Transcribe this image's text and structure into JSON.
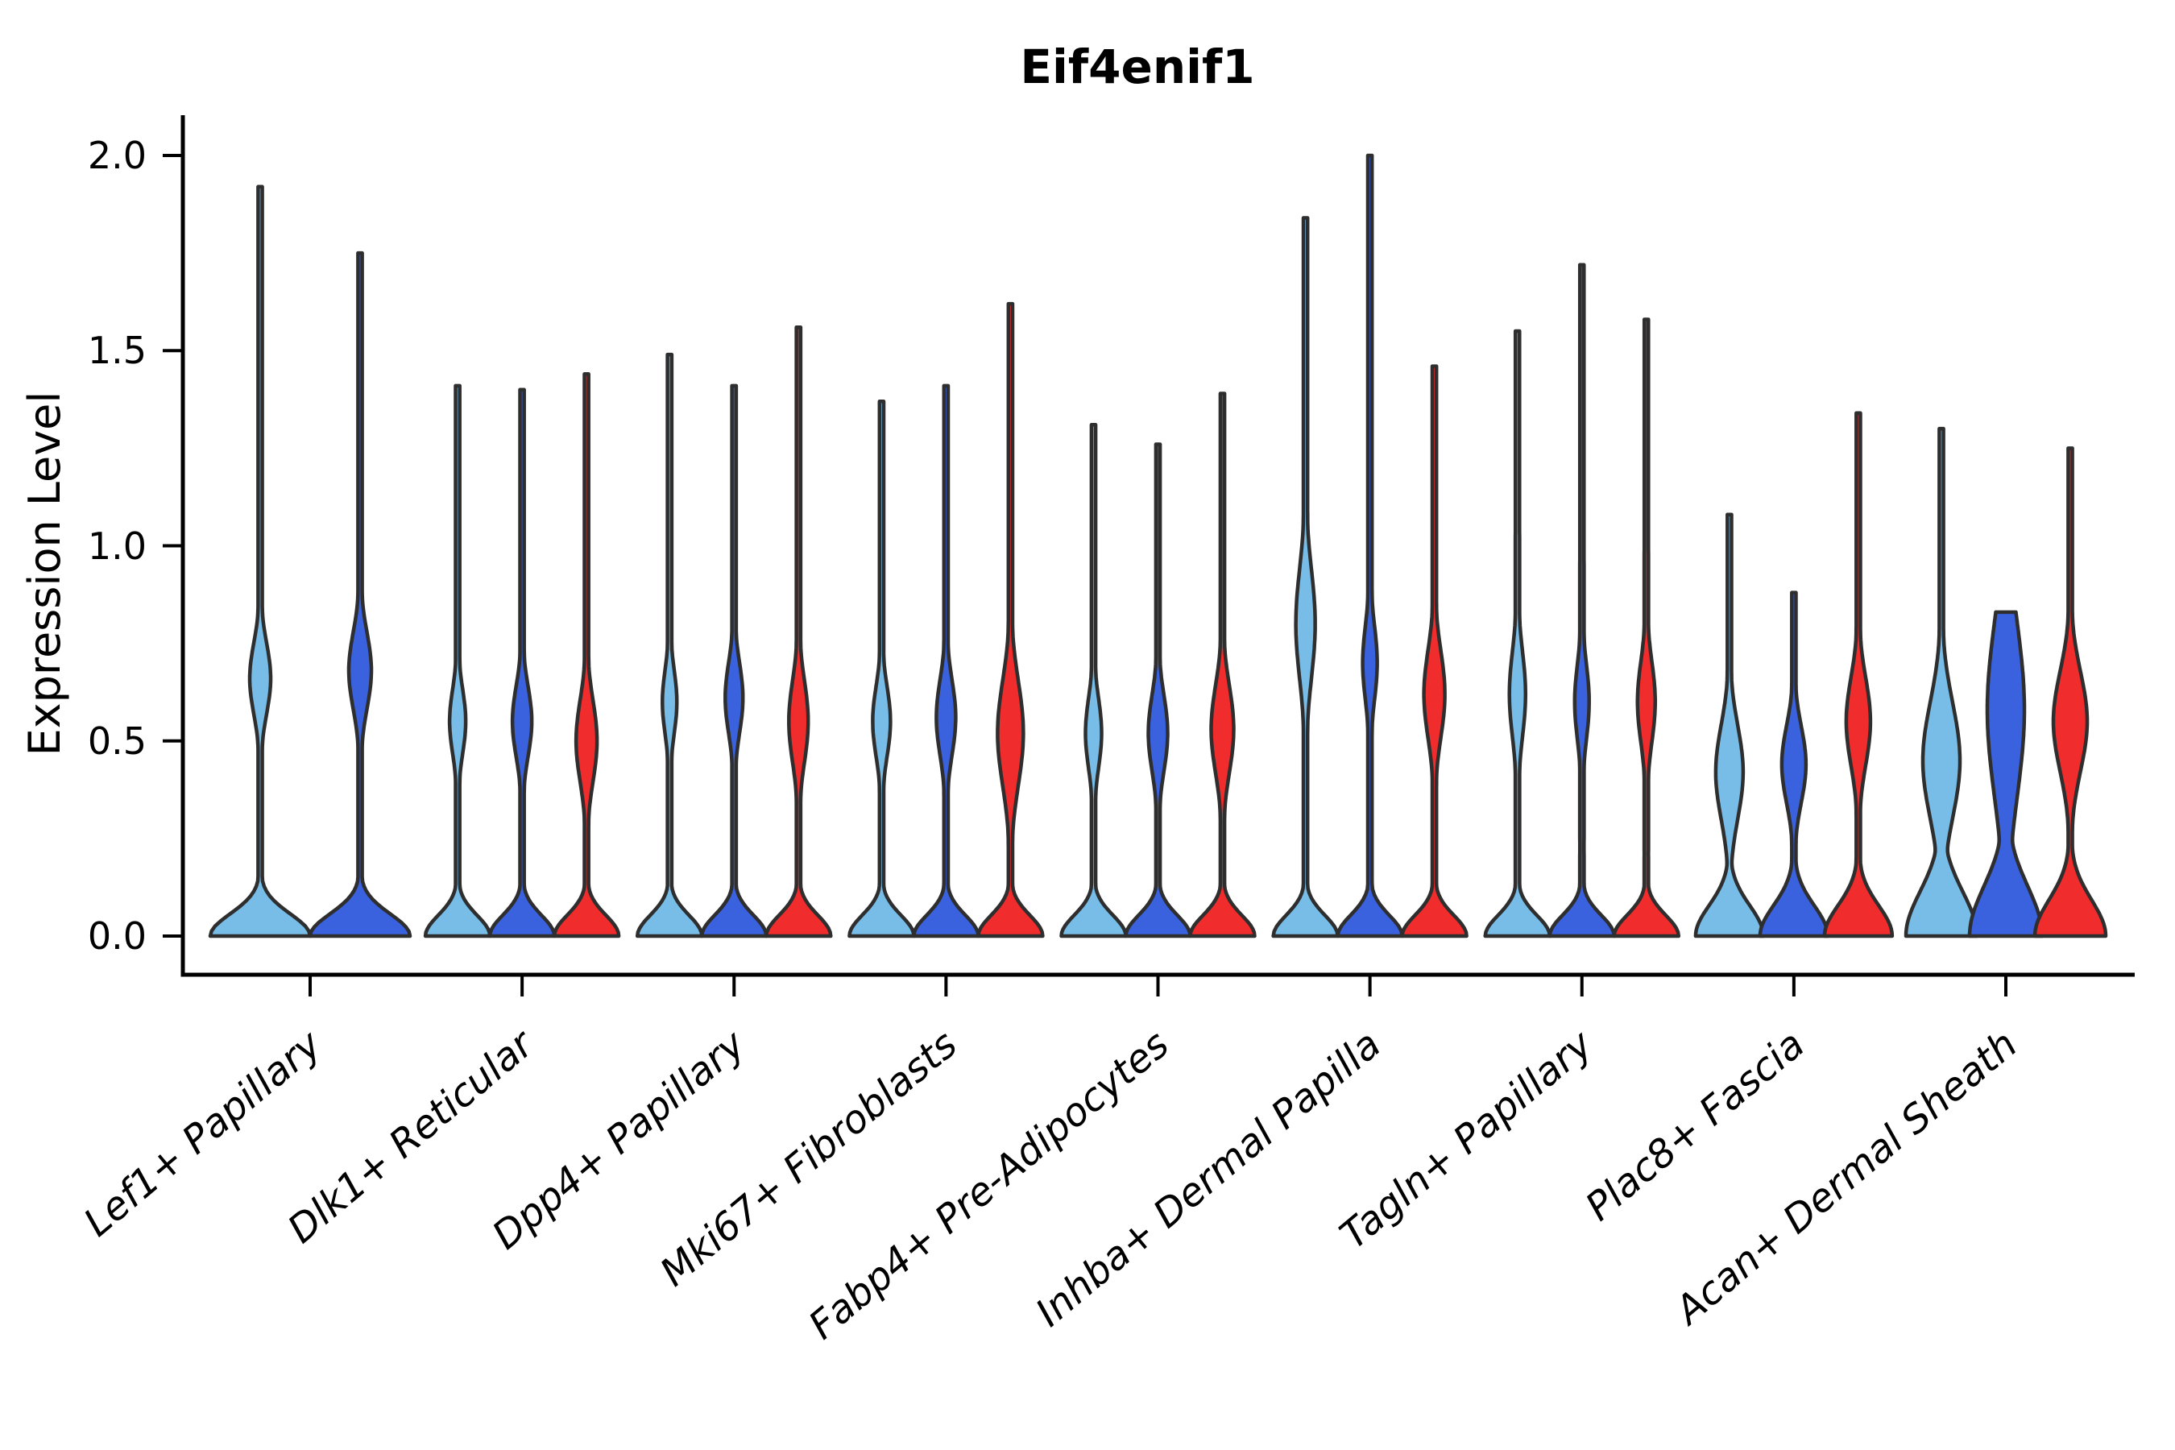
{
  "chart_data": {
    "type": "violin",
    "title": "Eif4enif1",
    "ylabel": "Expression Level",
    "xlabel": "",
    "ylim": [
      0,
      2.05
    ],
    "grid": false,
    "legend": null,
    "yticks": [
      0.0,
      0.5,
      1.0,
      1.5,
      2.0
    ],
    "ytick_labels": [
      "0.0",
      "0.5",
      "1.0",
      "1.5",
      "2.0"
    ],
    "categories": [
      "Lef1+ Papillary",
      "Dlk1+ Reticular",
      "Dpp4+ Papillary",
      "Mki67+ Fibroblasts",
      "Fabp4+ Pre-Adipocytes",
      "Inhba+ Dermal Papilla",
      "Tagln+ Papillary",
      "Plac8+ Fascia",
      "Acan+ Dermal Sheath"
    ],
    "series_colors": {
      "skyblue": "#77BDE8",
      "royalblue": "#3A62DE",
      "red": "#F02C2C",
      "edge": "#2E2E2E",
      "axis": "#000000"
    },
    "groups": [
      {
        "category": "Lef1+ Papillary",
        "violins": [
          {
            "color": "skyblue",
            "max": 1.92,
            "bulge_center": 0.66,
            "bulge_sigma": 0.13,
            "bulge_halfwidth": 13,
            "base_halfwidth": 62,
            "base_sigma": 0.08,
            "flat_top": false
          },
          {
            "color": "royalblue",
            "max": 1.75,
            "bulge_center": 0.68,
            "bulge_sigma": 0.14,
            "bulge_halfwidth": 14,
            "base_halfwidth": 62,
            "base_sigma": 0.08,
            "flat_top": false
          }
        ]
      },
      {
        "category": "Dlk1+ Reticular",
        "violins": [
          {
            "color": "skyblue",
            "max": 1.41,
            "bulge_center": 0.55,
            "bulge_sigma": 0.12,
            "bulge_halfwidth": 10,
            "base_halfwidth": 40,
            "base_sigma": 0.075,
            "flat_top": false
          },
          {
            "color": "royalblue",
            "max": 1.4,
            "bulge_center": 0.55,
            "bulge_sigma": 0.13,
            "bulge_halfwidth": 12,
            "base_halfwidth": 40,
            "base_sigma": 0.075,
            "flat_top": false
          },
          {
            "color": "red",
            "max": 1.44,
            "bulge_center": 0.5,
            "bulge_sigma": 0.15,
            "bulge_halfwidth": 13,
            "base_halfwidth": 40,
            "base_sigma": 0.075,
            "flat_top": false
          }
        ]
      },
      {
        "category": "Dpp4+ Papillary",
        "violins": [
          {
            "color": "skyblue",
            "max": 1.49,
            "bulge_center": 0.6,
            "bulge_sigma": 0.12,
            "bulge_halfwidth": 9,
            "base_halfwidth": 40,
            "base_sigma": 0.075,
            "flat_top": false
          },
          {
            "color": "royalblue",
            "max": 1.41,
            "bulge_center": 0.61,
            "bulge_sigma": 0.13,
            "bulge_halfwidth": 11,
            "base_halfwidth": 40,
            "base_sigma": 0.075,
            "flat_top": false
          },
          {
            "color": "red",
            "max": 1.56,
            "bulge_center": 0.55,
            "bulge_sigma": 0.15,
            "bulge_halfwidth": 12,
            "base_halfwidth": 40,
            "base_sigma": 0.075,
            "flat_top": false
          }
        ]
      },
      {
        "category": "Mki67+ Fibroblasts",
        "violins": [
          {
            "color": "skyblue",
            "max": 1.37,
            "bulge_center": 0.55,
            "bulge_sigma": 0.13,
            "bulge_halfwidth": 11,
            "base_halfwidth": 40,
            "base_sigma": 0.075,
            "flat_top": false
          },
          {
            "color": "royalblue",
            "max": 1.41,
            "bulge_center": 0.56,
            "bulge_sigma": 0.14,
            "bulge_halfwidth": 12,
            "base_halfwidth": 40,
            "base_sigma": 0.075,
            "flat_top": false
          },
          {
            "color": "red",
            "max": 1.62,
            "bulge_center": 0.52,
            "bulge_sigma": 0.19,
            "bulge_halfwidth": 16,
            "base_halfwidth": 40,
            "base_sigma": 0.075,
            "flat_top": false
          }
        ]
      },
      {
        "category": "Fabp4+ Pre-Adipocytes",
        "violins": [
          {
            "color": "skyblue",
            "max": 1.31,
            "bulge_center": 0.52,
            "bulge_sigma": 0.13,
            "bulge_halfwidth": 10,
            "base_halfwidth": 40,
            "base_sigma": 0.075,
            "flat_top": false
          },
          {
            "color": "royalblue",
            "max": 1.26,
            "bulge_center": 0.52,
            "bulge_sigma": 0.14,
            "bulge_halfwidth": 12,
            "base_halfwidth": 40,
            "base_sigma": 0.075,
            "flat_top": false
          },
          {
            "color": "red",
            "max": 1.39,
            "bulge_center": 0.53,
            "bulge_sigma": 0.16,
            "bulge_halfwidth": 14,
            "base_halfwidth": 40,
            "base_sigma": 0.075,
            "flat_top": false
          }
        ]
      },
      {
        "category": "Inhba+ Dermal Papilla",
        "violins": [
          {
            "color": "skyblue",
            "max": 1.84,
            "bulge_center": 0.8,
            "bulge_sigma": 0.2,
            "bulge_halfwidth": 12,
            "base_halfwidth": 40,
            "base_sigma": 0.075,
            "flat_top": false
          },
          {
            "color": "royalblue",
            "max": 2.0,
            "bulge_center": 0.7,
            "bulge_sigma": 0.14,
            "bulge_halfwidth": 9,
            "base_halfwidth": 40,
            "base_sigma": 0.075,
            "flat_top": false
          },
          {
            "color": "red",
            "max": 1.46,
            "bulge_center": 0.62,
            "bulge_sigma": 0.16,
            "bulge_halfwidth": 13,
            "base_halfwidth": 40,
            "base_sigma": 0.075,
            "flat_top": false
          }
        ]
      },
      {
        "category": "Tagln+ Papillary",
        "violins": [
          {
            "color": "skyblue",
            "max": 1.55,
            "bulge_center": 0.62,
            "bulge_sigma": 0.16,
            "bulge_halfwidth": 10,
            "base_halfwidth": 40,
            "base_sigma": 0.075,
            "flat_top": false
          },
          {
            "color": "royalblue",
            "max": 1.72,
            "bulge_center": 0.6,
            "bulge_sigma": 0.14,
            "bulge_halfwidth": 9,
            "base_halfwidth": 40,
            "base_sigma": 0.075,
            "flat_top": false
          },
          {
            "color": "red",
            "max": 1.58,
            "bulge_center": 0.6,
            "bulge_sigma": 0.15,
            "bulge_halfwidth": 11,
            "base_halfwidth": 40,
            "base_sigma": 0.075,
            "flat_top": false
          }
        ]
      },
      {
        "category": "Plac8+ Fascia",
        "violins": [
          {
            "color": "skyblue",
            "max": 1.08,
            "bulge_center": 0.42,
            "bulge_sigma": 0.17,
            "bulge_halfwidth": 17,
            "base_halfwidth": 42,
            "base_sigma": 0.11,
            "flat_top": false
          },
          {
            "color": "royalblue",
            "max": 0.88,
            "bulge_center": 0.44,
            "bulge_sigma": 0.14,
            "bulge_halfwidth": 15,
            "base_halfwidth": 42,
            "base_sigma": 0.11,
            "flat_top": false
          },
          {
            "color": "red",
            "max": 1.34,
            "bulge_center": 0.55,
            "bulge_sigma": 0.16,
            "bulge_halfwidth": 15,
            "base_halfwidth": 42,
            "base_sigma": 0.11,
            "flat_top": false
          }
        ]
      },
      {
        "category": "Acan+ Dermal Sheath",
        "violins": [
          {
            "color": "skyblue",
            "max": 1.3,
            "bulge_center": 0.45,
            "bulge_sigma": 0.21,
            "bulge_halfwidth": 23,
            "base_halfwidth": 44,
            "base_sigma": 0.16,
            "flat_top": false
          },
          {
            "color": "royalblue",
            "max": 0.83,
            "bulge_center": 0.58,
            "bulge_sigma": 0.32,
            "bulge_halfwidth": 23,
            "base_halfwidth": 45,
            "base_sigma": 0.18,
            "flat_top": true
          },
          {
            "color": "red",
            "max": 1.25,
            "bulge_center": 0.55,
            "bulge_sigma": 0.18,
            "bulge_halfwidth": 21,
            "base_halfwidth": 44,
            "base_sigma": 0.13,
            "flat_top": false
          }
        ]
      }
    ]
  }
}
